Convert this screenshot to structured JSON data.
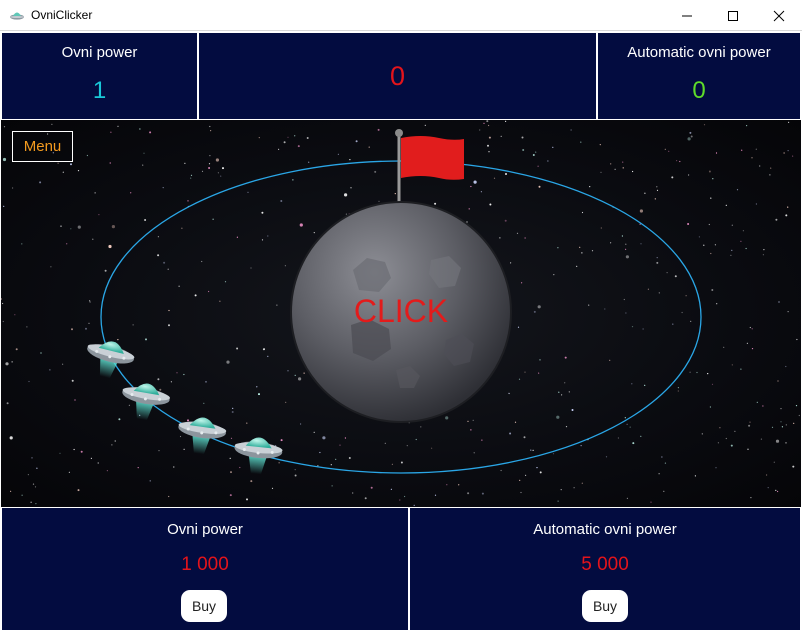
{
  "window": {
    "title": "OvniClicker",
    "controls": [
      "minimize",
      "maximize",
      "close"
    ]
  },
  "stats": {
    "ovni_power": {
      "label": "Ovni power",
      "value": "1",
      "color": "#19c8d8"
    },
    "score": {
      "value": "0",
      "color": "#e3141b"
    },
    "automatic_ovni_power": {
      "label": "Automatic ovni power",
      "value": "0",
      "color": "#5fdc2a"
    }
  },
  "game": {
    "menu_label": "Menu",
    "planet_label": "CLICK",
    "ufo_count": 4,
    "icons": [
      "flag-icon",
      "planet-moon",
      "ufo-icon"
    ]
  },
  "shop": {
    "ovni_power": {
      "label": "Ovni power",
      "price": "1 000",
      "buy_label": "Buy"
    },
    "automatic_ovni_power": {
      "label": "Automatic ovni power",
      "price": "5 000",
      "buy_label": "Buy"
    }
  },
  "colors": {
    "panel_background": "#030c40",
    "price": "#e3141b",
    "orbit": "#2aa6e6",
    "flag": "#e11d1d",
    "menu_text": "#f39a1f"
  }
}
